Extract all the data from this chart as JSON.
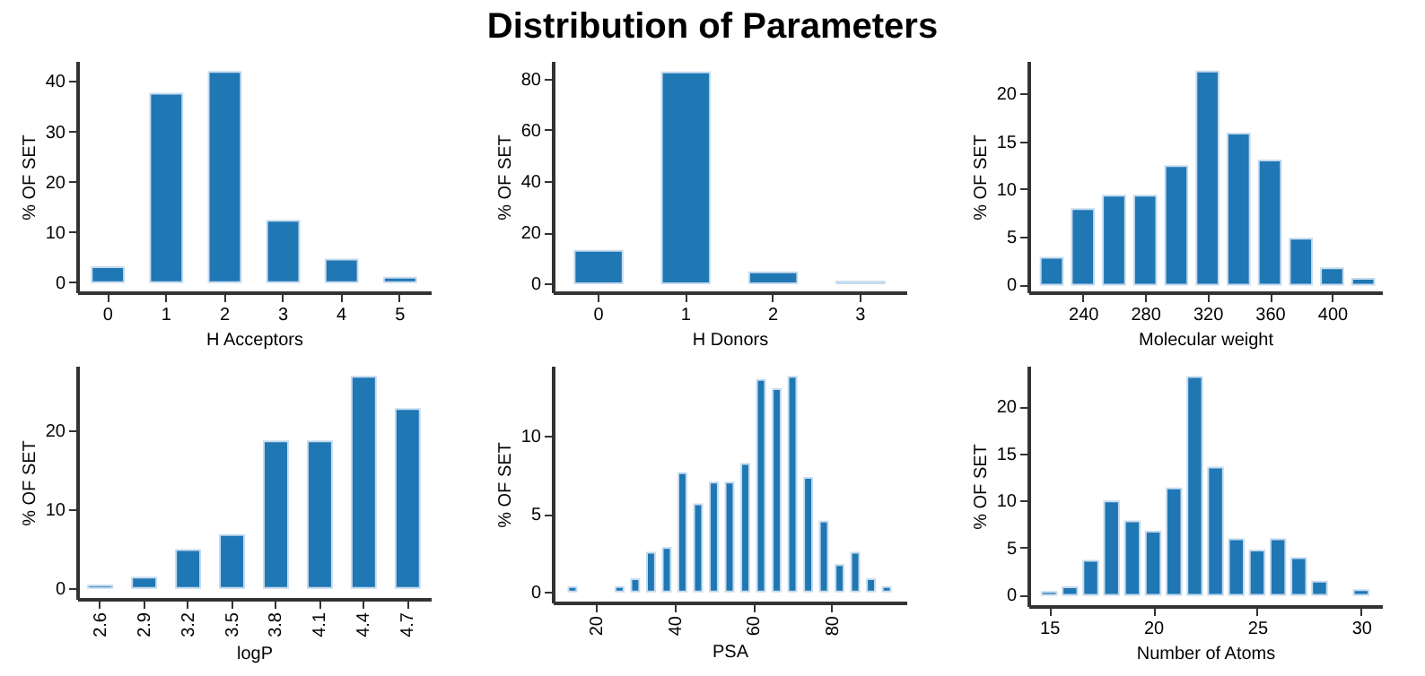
{
  "chart_data": [
    {
      "type": "bar",
      "xlabel": "H Acceptors",
      "ylabel": "% OF SET",
      "categories": [
        "0",
        "1",
        "2",
        "3",
        "4",
        "5"
      ],
      "values": [
        3,
        37.5,
        41.8,
        12.2,
        4.5,
        0.9
      ],
      "color": "#1f77b4",
      "ylim": [
        -2,
        44
      ],
      "yticks": [
        0,
        10,
        20,
        30,
        40
      ]
    },
    {
      "type": "bar",
      "title": "Distribution of Parameters",
      "xlabel": "H Donors",
      "ylabel": "% OF SET",
      "categories": [
        "0",
        "1",
        "2",
        "3"
      ],
      "values": [
        12.7,
        82.5,
        4.3,
        0.6
      ],
      "color": "#1f77b4",
      "ylim": [
        -3.5,
        87
      ],
      "yticks": [
        0,
        20,
        40,
        60,
        80
      ]
    },
    {
      "type": "bar",
      "xlabel": "Molecular weight",
      "ylabel": "% OF SET",
      "x": [
        220,
        240,
        260,
        280,
        300,
        320,
        340,
        360,
        380,
        400,
        420
      ],
      "values": [
        2.8,
        7.9,
        9.3,
        9.3,
        12.4,
        22.3,
        15.8,
        13.0,
        4.8,
        1.7,
        0.6
      ],
      "color": "#1f77b4",
      "xlim": [
        205,
        432
      ],
      "xticks": [
        240,
        280,
        320,
        360,
        400
      ],
      "ylim": [
        -0.8,
        23.4
      ],
      "yticks": [
        0,
        5,
        10,
        15,
        20
      ]
    },
    {
      "type": "bar",
      "xlabel": "logP",
      "ylabel": "% OF SET",
      "categories": [
        "2.6",
        "2.9",
        "3.2",
        "3.5",
        "3.8",
        "4.1",
        "4.4",
        "4.7"
      ],
      "values": [
        0.3,
        1.3,
        4.8,
        6.7,
        18.6,
        18.6,
        26.8,
        22.7
      ],
      "color": "#1f77b4",
      "ylim": [
        -1.4,
        28.2
      ],
      "yticks": [
        0,
        10,
        20
      ]
    },
    {
      "type": "bar",
      "xlabel": "PSA",
      "ylabel": "% OF SET",
      "x": [
        14,
        26,
        30,
        34,
        38,
        42,
        46,
        50,
        54,
        58,
        62,
        66,
        70,
        74,
        78,
        82,
        86,
        90,
        94
      ],
      "values": [
        0.3,
        0.3,
        0.8,
        2.5,
        2.8,
        7.6,
        5.6,
        7.0,
        7.0,
        8.2,
        13.6,
        13.0,
        13.8,
        7.3,
        4.5,
        1.7,
        2.5,
        0.8,
        0.3
      ],
      "color": "#1f77b4",
      "xlim": [
        9,
        99
      ],
      "xticks": [
        20,
        40,
        60,
        80
      ],
      "ylim": [
        -0.7,
        14.5
      ],
      "yticks": [
        0,
        5,
        10
      ]
    },
    {
      "type": "bar",
      "xlabel": "Number of Atoms",
      "ylabel": "% OF SET",
      "x": [
        15,
        16,
        17,
        18,
        19,
        20,
        21,
        22,
        23,
        24,
        25,
        26,
        27,
        28,
        30
      ],
      "values": [
        0.3,
        0.8,
        3.6,
        9.9,
        7.8,
        6.7,
        11.3,
        23.1,
        13.5,
        5.9,
        4.7,
        5.9,
        3.9,
        1.4,
        0.5
      ],
      "color": "#1f77b4",
      "xlim": [
        14,
        31
      ],
      "xticks": [
        15,
        20,
        25,
        30
      ],
      "ylim": [
        -1.2,
        24.3
      ],
      "yticks": [
        0,
        5,
        10,
        15,
        20
      ]
    }
  ]
}
